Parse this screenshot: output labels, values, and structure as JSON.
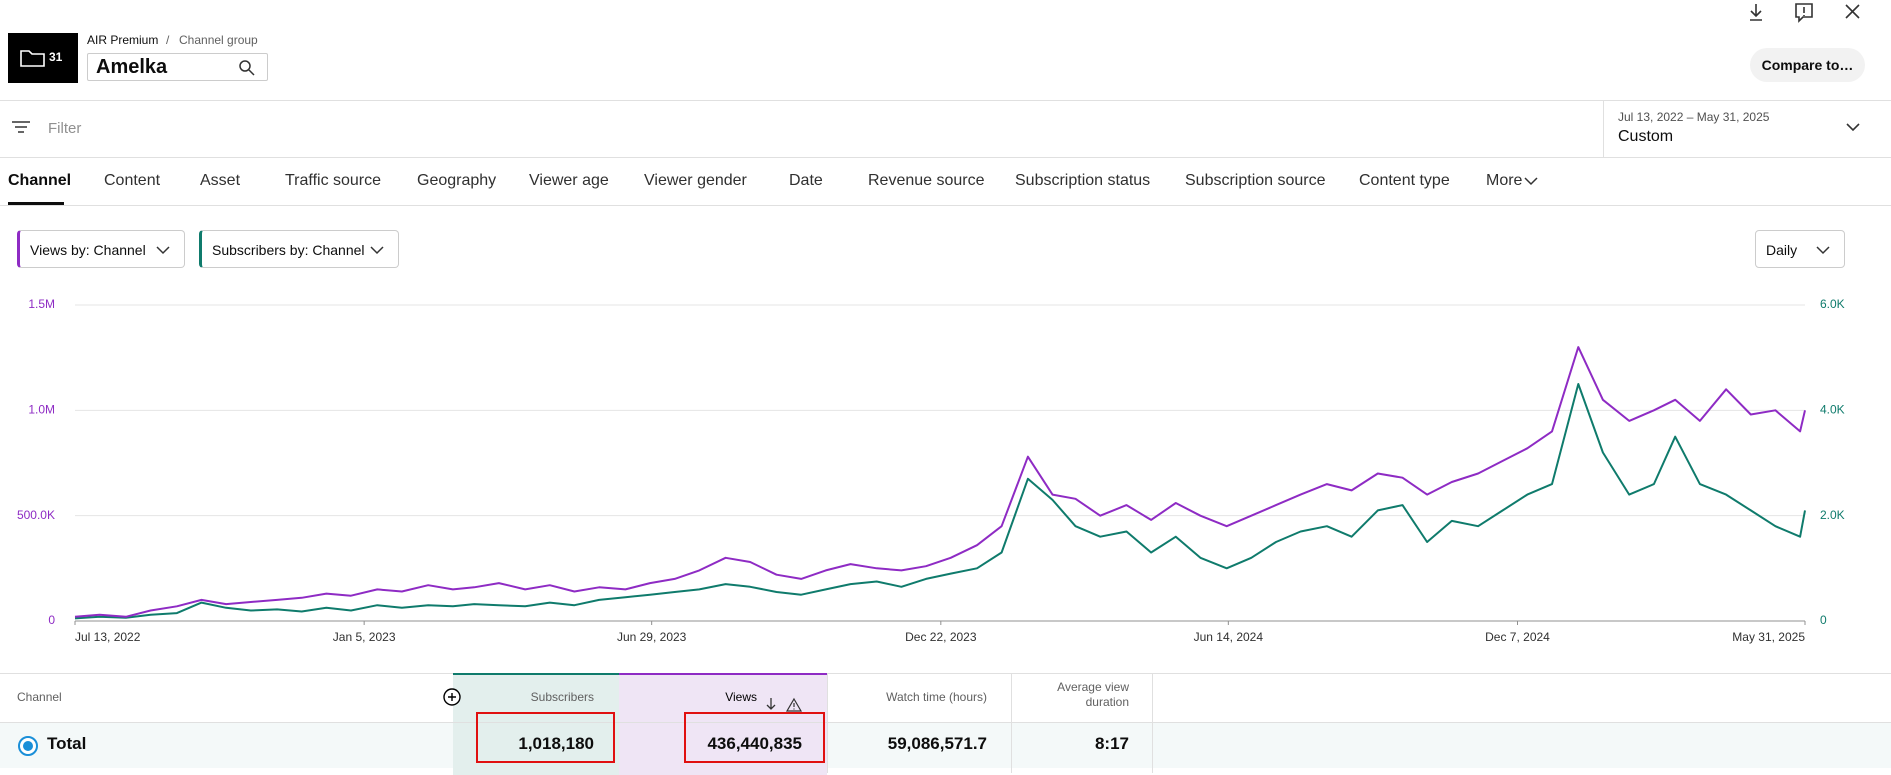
{
  "header": {
    "folder_count": "31",
    "breadcrumb_parent": "AIR Premium",
    "breadcrumb_separator": "/",
    "breadcrumb_child": "Channel group",
    "channel": "Amelka",
    "compare": "Compare to…"
  },
  "filter": "Filter",
  "date_range": {
    "range": "Jul 13, 2022 – May 31, 2025",
    "preset": "Custom"
  },
  "tabs": [
    "Channel",
    "Content",
    "Asset",
    "Traffic source",
    "Geography",
    "Viewer age",
    "Viewer gender",
    "Date",
    "Revenue source",
    "Subscription status",
    "Subscription source",
    "Content type",
    "More"
  ],
  "selectors": {
    "views": "Views by: Channel",
    "subscribers": "Subscribers by: Channel",
    "interval": "Daily"
  },
  "chart_data": {
    "type": "line",
    "x": [
      "2022-07-13",
      "2022-07-28",
      "2022-08-13",
      "2022-08-28",
      "2022-09-13",
      "2022-09-28",
      "2022-10-13",
      "2022-10-28",
      "2022-11-13",
      "2022-11-28",
      "2022-12-13",
      "2022-12-28",
      "2023-01-13",
      "2023-01-28",
      "2023-02-13",
      "2023-02-28",
      "2023-03-13",
      "2023-03-28",
      "2023-04-13",
      "2023-04-28",
      "2023-05-13",
      "2023-05-28",
      "2023-06-13",
      "2023-06-28",
      "2023-07-13",
      "2023-07-28",
      "2023-08-13",
      "2023-08-28",
      "2023-09-13",
      "2023-09-28",
      "2023-10-13",
      "2023-10-28",
      "2023-11-13",
      "2023-11-28",
      "2023-12-13",
      "2023-12-28",
      "2024-01-13",
      "2024-01-28",
      "2024-02-13",
      "2024-02-28",
      "2024-03-13",
      "2024-03-28",
      "2024-04-13",
      "2024-04-28",
      "2024-05-13",
      "2024-05-28",
      "2024-06-13",
      "2024-06-28",
      "2024-07-13",
      "2024-07-28",
      "2024-08-13",
      "2024-08-28",
      "2024-09-13",
      "2024-09-28",
      "2024-10-13",
      "2024-10-28",
      "2024-11-13",
      "2024-11-28",
      "2024-12-13",
      "2024-12-28",
      "2025-01-13",
      "2025-01-28",
      "2025-02-13",
      "2025-02-28",
      "2025-03-13",
      "2025-03-28",
      "2025-04-13",
      "2025-04-28",
      "2025-05-13",
      "2025-05-28",
      "2025-05-31"
    ],
    "series": [
      {
        "color": "#8e2bc4",
        "values": [
          20000,
          30000,
          20000,
          50000,
          70000,
          100000,
          80000,
          90000,
          100000,
          110000,
          130000,
          120000,
          150000,
          140000,
          170000,
          150000,
          160000,
          180000,
          150000,
          170000,
          140000,
          160000,
          150000,
          180000,
          200000,
          240000,
          300000,
          280000,
          220000,
          200000,
          240000,
          270000,
          250000,
          240000,
          260000,
          300000,
          360000,
          450000,
          780000,
          600000,
          580000,
          500000,
          550000,
          480000,
          560000,
          500000,
          450000,
          500000,
          550000,
          600000,
          650000,
          620000,
          700000,
          680000,
          600000,
          660000,
          700000,
          760000,
          820000,
          900000,
          1300000,
          1050000,
          950000,
          1000000,
          1050000,
          950000,
          1100000,
          980000,
          1000000,
          900000,
          1000000
        ]
      },
      {
        "color": "#0f7b6c",
        "axis": "y2",
        "values": [
          50,
          80,
          60,
          120,
          150,
          350,
          250,
          200,
          220,
          180,
          250,
          200,
          300,
          250,
          300,
          280,
          320,
          300,
          280,
          350,
          300,
          400,
          450,
          500,
          550,
          600,
          700,
          650,
          550,
          500,
          600,
          700,
          750,
          650,
          800,
          900,
          1000,
          1300,
          2700,
          2300,
          1800,
          1600,
          1700,
          1300,
          1600,
          1200,
          1000,
          1200,
          1500,
          1700,
          1800,
          1600,
          2100,
          2200,
          1500,
          1900,
          1800,
          2100,
          2400,
          2600,
          4500,
          3200,
          2400,
          2600,
          3500,
          2600,
          2400,
          2100,
          1800,
          1600,
          2100
        ]
      }
    ],
    "xlim": [
      "2022-07-13",
      "2025-05-31"
    ],
    "xticks": [
      {
        "value": "2022-07-13",
        "label": "Jul 13, 2022"
      },
      {
        "value": "2023-01-05",
        "label": "Jan 5, 2023"
      },
      {
        "value": "2023-06-29",
        "label": "Jun 29, 2023"
      },
      {
        "value": "2023-12-22",
        "label": "Dec 22, 2023"
      },
      {
        "value": "2024-06-14",
        "label": "Jun 14, 2024"
      },
      {
        "value": "2024-12-07",
        "label": "Dec 7, 2024"
      },
      {
        "value": "2025-05-31",
        "label": "May 31, 2025"
      }
    ],
    "ylim": [
      0,
      1500000
    ],
    "yticks": [
      0,
      {
        "value": 500000,
        "label": "500.0K"
      },
      {
        "value": 1000000,
        "label": "1.0M"
      },
      {
        "value": 1500000,
        "label": "1.5M"
      }
    ],
    "y2lim": [
      0,
      6000
    ],
    "y2ticks": [
      0,
      {
        "value": 2000,
        "label": "2.0K"
      },
      {
        "value": 4000,
        "label": "4.0K"
      },
      {
        "value": 6000,
        "label": "6.0K"
      }
    ],
    "grid": true
  },
  "table": {
    "headers": [
      "Channel",
      "Subscribers",
      "Views",
      "Watch time (hours)",
      "Average view duration"
    ],
    "rows": [
      [
        "Total",
        "1,018,180",
        "436,440,835",
        "59,086,571.7",
        "8:17"
      ]
    ]
  }
}
